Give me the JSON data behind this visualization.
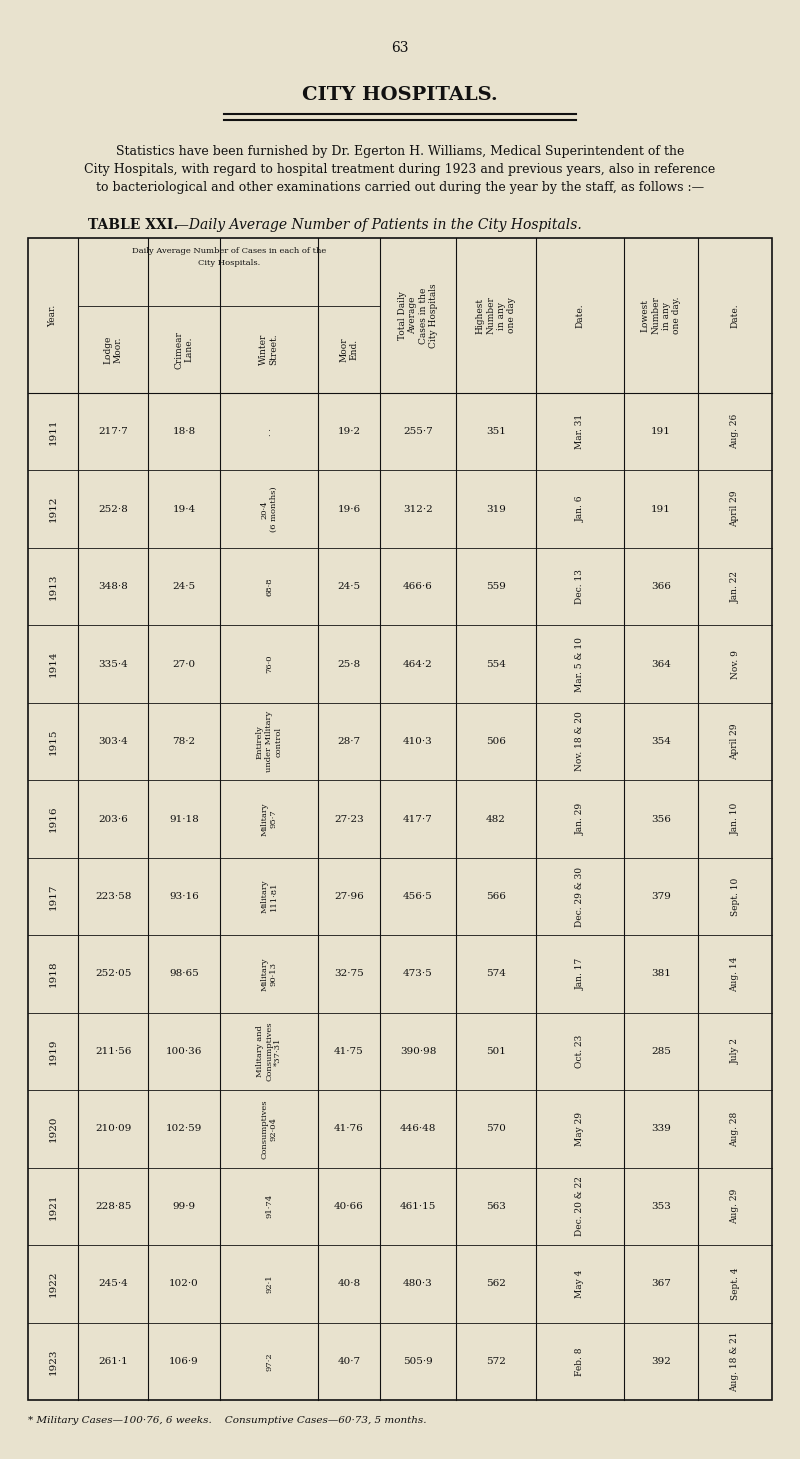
{
  "page_number": "63",
  "title": "CITY HOSPITALS.",
  "subtitle_line1": "Statistics have been furnished by Dr. Egerton H. Williams, Medical Superintendent of the",
  "subtitle_line2": "City Hospitals, with regard to hospital treatment during 1923 and previous years, also in reference",
  "subtitle_line3": "to bacteriological and other examinations carried out during the year by the staff, as follows :—",
  "table_title_bold": "TABLE XXI.",
  "table_title_italic": "—Daily Average Number of Patients in the City Hospitals.",
  "background_color": "#e8e2ce",
  "text_color": "#111111",
  "years": [
    "1911",
    "1912",
    "1913",
    "1914",
    "1915",
    "1916",
    "1917",
    "1918",
    "1919",
    "1920",
    "1921",
    "1922",
    "1923"
  ],
  "lodge_moor": [
    "217·7",
    "252·8",
    "348·8",
    "335·4",
    "303·4",
    "203·6",
    "223·58",
    "252·05",
    "211·56",
    "210·09",
    "228·85",
    "245·4",
    "261·1"
  ],
  "crimear_lane": [
    "18·8",
    "19·4",
    "24·5",
    "27·0",
    "78·2",
    "91·18",
    "93·16",
    "98·65",
    "100·36",
    "102·59",
    "99·9",
    "102·0",
    "106·9"
  ],
  "winter_street": [
    ". .",
    "20·4\n(6 months)",
    "68·8",
    "76·0",
    "Entirely\nunder Military\ncontrol",
    "Military\n95·7",
    "Military\n111·81",
    "Military\n90·13",
    "Military and\nConsumptives\n*37·31",
    "Consumptives\n92·04",
    "91·74",
    "92·1",
    "97·2"
  ],
  "moor_end": [
    "19·2",
    "19·6",
    "24·5",
    "25·8",
    "28·7",
    "27·23",
    "27·96",
    "32·75",
    "41·75",
    "41·76",
    "40·66",
    "40·8",
    "40·7"
  ],
  "total_daily": [
    "255·7",
    "312·2",
    "466·6",
    "464·2",
    "410·3",
    "417·7",
    "456·5",
    "473·5",
    "390·98",
    "446·48",
    "461·15",
    "480·3",
    "505·9"
  ],
  "highest_number": [
    "351",
    "319",
    "559",
    "554",
    "506",
    "482",
    "566",
    "574",
    "501",
    "570",
    "563",
    "562",
    "572"
  ],
  "highest_date": [
    "Mar. 31",
    "Jan. 6",
    "Dec. 13",
    "Mar. 5 & 10",
    "Nov. 18 & 20",
    "Jan. 29",
    "Dec. 29 & 30",
    "Jan. 17",
    "Oct. 23",
    "May 29",
    "Dec. 20 & 22",
    "May 4",
    "Feb. 8"
  ],
  "lowest_number": [
    "191",
    "191",
    "366",
    "364",
    "354",
    "356",
    "379",
    "381",
    "285",
    "339",
    "353",
    "367",
    "392"
  ],
  "lowest_date": [
    "Aug. 26",
    "April 29",
    "Jan. 22",
    "Nov. 9",
    "April 29",
    "Jan. 10",
    "Sept. 10",
    "Aug. 14",
    "July 2",
    "Aug. 28",
    "Aug. 29",
    "Sept. 4",
    "Aug. 18 & 21"
  ],
  "footnotes": "* Military Cases—100·76, 6 weeks.    Consumptive Cases—60·73, 5 months."
}
